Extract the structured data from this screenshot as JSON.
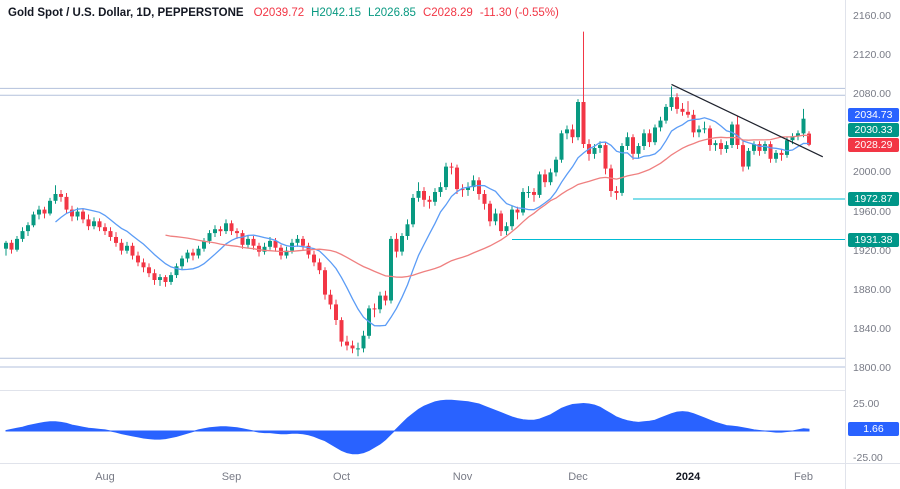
{
  "legend": {
    "symbol": "Gold Spot / U.S. Dollar, 1D, PEPPERSTONE",
    "ohlc_tokens": [
      {
        "text": "O2039.72",
        "color": "#f23645"
      },
      {
        "text": "H2042.15",
        "color": "#089981"
      },
      {
        "text": "L2026.85",
        "color": "#089981"
      },
      {
        "text": "C2028.29",
        "color": "#f23645"
      },
      {
        "text": "-11.30 (-0.55%)",
        "color": "#f23645"
      }
    ]
  },
  "colors": {
    "up": "#089981",
    "down": "#f23645",
    "ma_fast": "#5b9cf6",
    "ma_slow": "#ef8080",
    "oscillator": "#2962ff",
    "ray": "#00bcd4",
    "hline": "#b3c1dc",
    "trendline": "#1e222d"
  },
  "chart_data": {
    "type": "candlestick",
    "title": "Gold Spot / U.S. Dollar",
    "timeframe": "1D",
    "exchange": "PEPPERSTONE",
    "ohlc": {
      "open": 2039.72,
      "high": 2042.15,
      "low": 2026.85,
      "close": 2028.29,
      "change": -11.3,
      "change_pct": -0.55
    },
    "price_axis": {
      "range": [
        1800,
        2160
      ],
      "labels": [
        {
          "text": "2160.00",
          "price": 2160
        },
        {
          "text": "2120.00",
          "price": 2120
        },
        {
          "text": "2080.00",
          "price": 2080
        },
        {
          "text": "2000.00",
          "price": 2000
        },
        {
          "text": "1960.00",
          "price": 1960
        },
        {
          "text": "1920.00",
          "price": 1920
        },
        {
          "text": "1880.00",
          "price": 1880
        },
        {
          "text": "1840.00",
          "price": 1840
        },
        {
          "text": "1800.00",
          "price": 1800
        }
      ],
      "badges": [
        {
          "text": "2034.73",
          "price": 2034.73,
          "color": "#2962ff"
        },
        {
          "text": "2030.33",
          "price": 2030.33,
          "color": "#009688"
        },
        {
          "text": "2028.29",
          "price": 2028.29,
          "color": "#f23645"
        },
        {
          "text": "1972.87",
          "price": 1972.87,
          "color": "#009688"
        },
        {
          "text": "1931.38",
          "price": 1931.38,
          "color": "#009688"
        }
      ]
    },
    "time_axis": {
      "labels": [
        {
          "text": "Aug",
          "index": 18
        },
        {
          "text": "Sep",
          "index": 41
        },
        {
          "text": "Oct",
          "index": 61
        },
        {
          "text": "Nov",
          "index": 83
        },
        {
          "text": "Dec",
          "index": 104
        },
        {
          "text": "2024",
          "index": 124,
          "bold": true
        },
        {
          "text": "Feb",
          "index": 145
        }
      ]
    },
    "candles": [
      [
        1922,
        1930,
        1915,
        1928
      ],
      [
        1928,
        1931,
        1917,
        1921
      ],
      [
        1921,
        1935,
        1919,
        1932
      ],
      [
        1932,
        1944,
        1929,
        1940
      ],
      [
        1940,
        1949,
        1935,
        1946
      ],
      [
        1946,
        1960,
        1944,
        1957
      ],
      [
        1957,
        1966,
        1952,
        1962
      ],
      [
        1962,
        1965,
        1953,
        1958
      ],
      [
        1958,
        1974,
        1956,
        1971
      ],
      [
        1971,
        1987,
        1968,
        1978
      ],
      [
        1978,
        1982,
        1970,
        1975
      ],
      [
        1975,
        1979,
        1958,
        1962
      ],
      [
        1962,
        1966,
        1950,
        1955
      ],
      [
        1955,
        1964,
        1951,
        1960
      ],
      [
        1960,
        1963,
        1948,
        1952
      ],
      [
        1952,
        1957,
        1941,
        1945
      ],
      [
        1945,
        1954,
        1942,
        1950
      ],
      [
        1950,
        1953,
        1940,
        1944
      ],
      [
        1944,
        1948,
        1936,
        1940
      ],
      [
        1940,
        1944,
        1930,
        1934
      ],
      [
        1934,
        1939,
        1924,
        1928
      ],
      [
        1928,
        1932,
        1916,
        1920
      ],
      [
        1920,
        1929,
        1917,
        1925
      ],
      [
        1925,
        1928,
        1911,
        1915
      ],
      [
        1915,
        1919,
        1904,
        1908
      ],
      [
        1908,
        1912,
        1898,
        1903
      ],
      [
        1903,
        1907,
        1893,
        1897
      ],
      [
        1897,
        1901,
        1885,
        1890
      ],
      [
        1890,
        1896,
        1884,
        1893
      ],
      [
        1893,
        1895,
        1883,
        1888
      ],
      [
        1888,
        1898,
        1885,
        1895
      ],
      [
        1895,
        1907,
        1892,
        1904
      ],
      [
        1904,
        1915,
        1901,
        1912
      ],
      [
        1912,
        1921,
        1908,
        1918
      ],
      [
        1918,
        1922,
        1910,
        1915
      ],
      [
        1915,
        1925,
        1912,
        1922
      ],
      [
        1922,
        1933,
        1919,
        1930
      ],
      [
        1930,
        1941,
        1927,
        1938
      ],
      [
        1938,
        1946,
        1934,
        1942
      ],
      [
        1942,
        1945,
        1935,
        1940
      ],
      [
        1940,
        1952,
        1937,
        1948
      ],
      [
        1948,
        1951,
        1936,
        1940
      ],
      [
        1940,
        1943,
        1932,
        1938
      ],
      [
        1938,
        1941,
        1922,
        1926
      ],
      [
        1926,
        1936,
        1923,
        1932
      ],
      [
        1932,
        1935,
        1921,
        1925
      ],
      [
        1925,
        1928,
        1914,
        1919
      ],
      [
        1919,
        1928,
        1916,
        1924
      ],
      [
        1924,
        1934,
        1921,
        1930
      ],
      [
        1930,
        1933,
        1919,
        1923
      ],
      [
        1923,
        1926,
        1911,
        1915
      ],
      [
        1915,
        1924,
        1912,
        1920
      ],
      [
        1920,
        1932,
        1917,
        1928
      ],
      [
        1928,
        1936,
        1924,
        1932
      ],
      [
        1932,
        1935,
        1921,
        1925
      ],
      [
        1925,
        1928,
        1912,
        1916
      ],
      [
        1916,
        1920,
        1904,
        1908
      ],
      [
        1908,
        1912,
        1896,
        1900
      ],
      [
        1900,
        1903,
        1870,
        1875
      ],
      [
        1875,
        1880,
        1860,
        1865
      ],
      [
        1865,
        1870,
        1844,
        1849
      ],
      [
        1849,
        1852,
        1822,
        1827
      ],
      [
        1827,
        1833,
        1818,
        1823
      ],
      [
        1823,
        1828,
        1815,
        1820
      ],
      [
        1820,
        1826,
        1812,
        1820
      ],
      [
        1820,
        1838,
        1816,
        1833
      ],
      [
        1833,
        1864,
        1830,
        1861
      ],
      [
        1861,
        1866,
        1852,
        1860
      ],
      [
        1860,
        1878,
        1856,
        1874
      ],
      [
        1874,
        1879,
        1864,
        1869
      ],
      [
        1869,
        1935,
        1866,
        1932
      ],
      [
        1932,
        1938,
        1913,
        1919
      ],
      [
        1919,
        1938,
        1915,
        1935
      ],
      [
        1935,
        1952,
        1931,
        1947
      ],
      [
        1947,
        1978,
        1944,
        1974
      ],
      [
        1974,
        1990,
        1970,
        1981
      ],
      [
        1981,
        1985,
        1965,
        1972
      ],
      [
        1972,
        1976,
        1963,
        1970
      ],
      [
        1970,
        1984,
        1966,
        1980
      ],
      [
        1980,
        1990,
        1975,
        1985
      ],
      [
        1985,
        2010,
        1982,
        2006
      ],
      [
        2006,
        2010,
        1998,
        2005
      ],
      [
        2005,
        2008,
        1978,
        1983
      ],
      [
        1983,
        1988,
        1975,
        1982
      ],
      [
        1982,
        1990,
        1976,
        1985
      ],
      [
        1985,
        1997,
        1981,
        1992
      ],
      [
        1992,
        1995,
        1972,
        1978
      ],
      [
        1978,
        1982,
        1962,
        1968
      ],
      [
        1968,
        1971,
        1945,
        1950
      ],
      [
        1950,
        1963,
        1946,
        1958
      ],
      [
        1958,
        1961,
        1935,
        1940
      ],
      [
        1940,
        1949,
        1936,
        1945
      ],
      [
        1945,
        1966,
        1941,
        1962
      ],
      [
        1962,
        1965,
        1952,
        1959
      ],
      [
        1959,
        1984,
        1956,
        1980
      ],
      [
        1980,
        1986,
        1974,
        1980
      ],
      [
        1980,
        1984,
        1970,
        1977
      ],
      [
        1977,
        2001,
        1974,
        1998
      ],
      [
        1998,
        2003,
        1985,
        1990
      ],
      [
        1990,
        2004,
        1987,
        2000
      ],
      [
        2000,
        2016,
        1996,
        2013
      ],
      [
        2013,
        2043,
        2010,
        2040
      ],
      [
        2040,
        2048,
        2034,
        2044
      ],
      [
        2044,
        2049,
        2030,
        2036
      ],
      [
        2036,
        2075,
        2033,
        2072
      ],
      [
        2072,
        2144,
        2025,
        2029
      ],
      [
        2029,
        2034,
        2012,
        2019
      ],
      [
        2019,
        2029,
        2014,
        2025
      ],
      [
        2025,
        2032,
        2020,
        2028
      ],
      [
        2028,
        2031,
        1998,
        2004
      ],
      [
        2004,
        2008,
        1975,
        1981
      ],
      [
        1981,
        1986,
        1972,
        1979
      ],
      [
        1979,
        2030,
        1976,
        2027
      ],
      [
        2027,
        2041,
        2023,
        2036
      ],
      [
        2036,
        2039,
        2013,
        2019
      ],
      [
        2019,
        2030,
        2015,
        2027
      ],
      [
        2027,
        2044,
        2023,
        2040
      ],
      [
        2040,
        2044,
        2026,
        2031
      ],
      [
        2031,
        2049,
        2028,
        2046
      ],
      [
        2046,
        2057,
        2042,
        2053
      ],
      [
        2053,
        2070,
        2050,
        2067
      ],
      [
        2067,
        2088,
        2063,
        2077
      ],
      [
        2077,
        2081,
        2060,
        2065
      ],
      [
        2065,
        2071,
        2058,
        2062
      ],
      [
        2062,
        2073,
        2056,
        2059
      ],
      [
        2059,
        2064,
        2036,
        2041
      ],
      [
        2041,
        2048,
        2036,
        2044
      ],
      [
        2044,
        2052,
        2040,
        2045
      ],
      [
        2045,
        2048,
        2022,
        2028
      ],
      [
        2028,
        2033,
        2022,
        2030
      ],
      [
        2030,
        2034,
        2018,
        2024
      ],
      [
        2024,
        2032,
        2020,
        2028
      ],
      [
        2028,
        2052,
        2025,
        2049
      ],
      [
        2049,
        2058,
        2024,
        2028
      ],
      [
        2028,
        2032,
        2001,
        2006
      ],
      [
        2006,
        2025,
        2003,
        2022
      ],
      [
        2022,
        2032,
        2018,
        2029
      ],
      [
        2029,
        2032,
        2017,
        2022
      ],
      [
        2022,
        2032,
        2019,
        2029
      ],
      [
        2029,
        2032,
        2010,
        2014
      ],
      [
        2014,
        2023,
        2010,
        2020
      ],
      [
        2020,
        2024,
        2012,
        2018
      ],
      [
        2018,
        2036,
        2015,
        2033
      ],
      [
        2033,
        2040,
        2029,
        2037
      ],
      [
        2037,
        2043,
        2033,
        2040
      ],
      [
        2040,
        2065,
        2036,
        2055
      ],
      [
        2039.72,
        2042.15,
        2026.85,
        2028.29
      ]
    ],
    "oscillator": {
      "range": [
        -25,
        25
      ],
      "axis_labels": [
        {
          "text": "25.00",
          "value": 25
        },
        {
          "text": "-25.00",
          "value": -25
        }
      ],
      "badge": {
        "text": "1.66",
        "value": 1.66,
        "color": "#2962ff"
      },
      "values": [
        0.5,
        1.5,
        2.5,
        3.5,
        5,
        6,
        7,
        8,
        8.5,
        8.5,
        8,
        7,
        5.5,
        4.5,
        3.5,
        2.5,
        2,
        1.5,
        1,
        0,
        -1,
        -2.5,
        -3.5,
        -4.5,
        -5.5,
        -6.5,
        -7,
        -7.5,
        -7.5,
        -7,
        -6,
        -5,
        -3.5,
        -2,
        -0.5,
        1,
        2,
        3,
        3.5,
        4,
        4,
        3.5,
        3,
        2,
        1,
        0,
        -1,
        -1.5,
        -1.5,
        -2,
        -2.5,
        -2.5,
        -2,
        -2,
        -2.5,
        -3.5,
        -5,
        -7,
        -9,
        -12,
        -15,
        -18,
        -20,
        -21,
        -21,
        -20,
        -18,
        -15,
        -12,
        -8,
        -3,
        2,
        7,
        12,
        16,
        20,
        23,
        25,
        27,
        28,
        28.5,
        28.5,
        28,
        27.5,
        27,
        26,
        25,
        23,
        21,
        19,
        17,
        15,
        13,
        11.5,
        10.5,
        10,
        10,
        11,
        13,
        15,
        18,
        21,
        23,
        24.5,
        25,
        25.5,
        25,
        24,
        22,
        19,
        16,
        13,
        11,
        9.5,
        8.5,
        8,
        8.5,
        9,
        10,
        12,
        14,
        16,
        17.5,
        18,
        17.5,
        16,
        14,
        12,
        10,
        8,
        6.5,
        5,
        4.5,
        4,
        3,
        2,
        1,
        0.5,
        0,
        -0.5,
        -1,
        -1,
        -0.5,
        0,
        1,
        2,
        1.66
      ]
    },
    "overlays": {
      "ma_fast": {
        "type": "sma",
        "length": 10
      },
      "ma_slow": {
        "type": "sma",
        "length": 30
      },
      "trendline": {
        "from": {
          "index": 121,
          "price": 2090
        },
        "to": {
          "index": 148.5,
          "price": 2016
        }
      },
      "horizontal_lines": [
        {
          "price": 2086
        },
        {
          "price": 2079
        },
        {
          "price": 1810
        },
        {
          "price": 1801
        }
      ],
      "rays": [
        {
          "price": 1972.87,
          "from_index": 114
        },
        {
          "price": 1931.38,
          "from_index": 92
        }
      ]
    }
  }
}
